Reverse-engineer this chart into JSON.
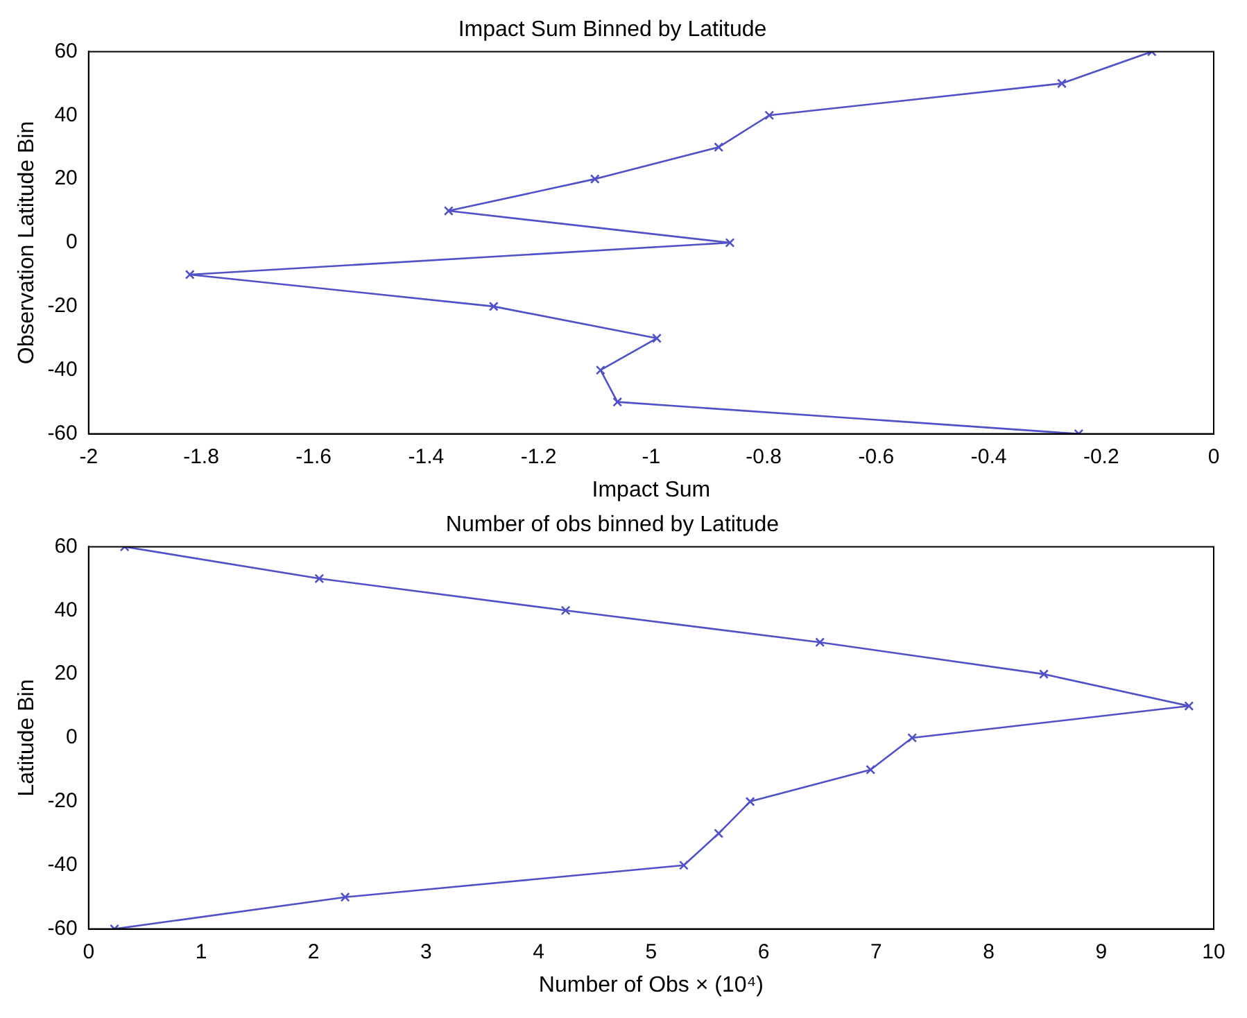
{
  "chart_data": [
    {
      "type": "line",
      "title": "Impact Sum Binned by Latitude",
      "xlabel": "Impact Sum",
      "ylabel": "Observation Latitude Bin",
      "xlim": [
        -2,
        0
      ],
      "xticks": [
        -2,
        -1.8,
        -1.6,
        -1.4,
        -1.2,
        -1,
        -0.8,
        -0.6,
        -0.4,
        -0.2,
        0
      ],
      "ylim": [
        -60,
        60
      ],
      "yticks": [
        -60,
        -40,
        -20,
        0,
        20,
        40,
        60
      ],
      "grid": false,
      "legend": false,
      "marker": "cross",
      "line_style": "solid",
      "series": [
        {
          "color": "#5050c8",
          "x": [
            -0.11,
            -0.27,
            -0.79,
            -0.88,
            -1.1,
            -1.36,
            -0.86,
            -1.82,
            -1.28,
            -0.99,
            -1.09,
            -1.06,
            -0.24
          ],
          "values": [
            60,
            50,
            40,
            30,
            20,
            10,
            0,
            -10,
            -20,
            -30,
            -40,
            -50,
            -60
          ]
        }
      ]
    },
    {
      "type": "line",
      "title": "Number of obs binned by Latitude",
      "xlabel": "Number of Obs × (10⁴)",
      "ylabel": "Latitude Bin",
      "xlim": [
        0,
        10
      ],
      "xticks": [
        0,
        1,
        2,
        3,
        4,
        5,
        6,
        7,
        8,
        9,
        10
      ],
      "ylim": [
        -60,
        60
      ],
      "yticks": [
        -60,
        -40,
        -20,
        0,
        20,
        40,
        60
      ],
      "grid": false,
      "legend": false,
      "marker": "cross",
      "line_style": "solid",
      "series": [
        {
          "color": "#5050c8",
          "x": [
            0.32,
            2.05,
            4.24,
            6.5,
            8.49,
            9.78,
            7.32,
            6.95,
            5.88,
            5.6,
            5.29,
            2.28,
            0.23
          ],
          "values": [
            60,
            50,
            40,
            30,
            20,
            10,
            0,
            -10,
            -20,
            -30,
            -40,
            -50,
            -60
          ]
        }
      ]
    }
  ]
}
